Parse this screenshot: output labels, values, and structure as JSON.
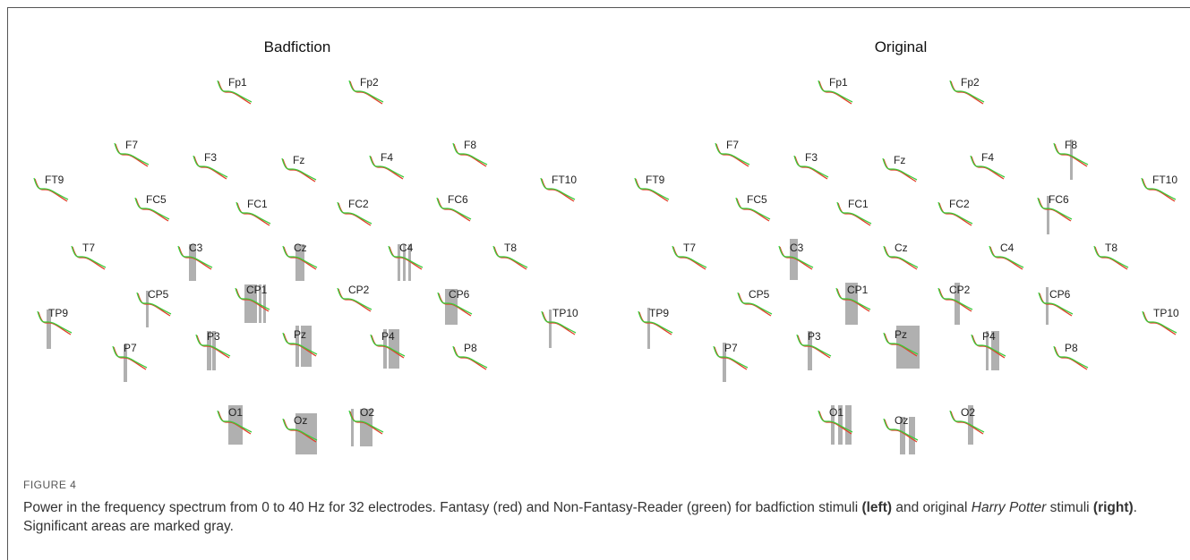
{
  "panels": [
    {
      "title": "Badfiction",
      "electrodes": [
        "Fp1",
        "Fp2",
        "F7",
        "F3",
        "Fz",
        "F4",
        "F8",
        "FT9",
        "FT10",
        "FC5",
        "FC1",
        "FC2",
        "FC6",
        "T7",
        "C3",
        "Cz",
        "C4",
        "T8",
        "TP9",
        "CP5",
        "CP1",
        "CP2",
        "CP6",
        "TP10",
        "P7",
        "P3",
        "Pz",
        "P4",
        "P8",
        "O1",
        "Oz",
        "O2"
      ]
    },
    {
      "title": "Original",
      "electrodes": [
        "Fp1",
        "Fp2",
        "F7",
        "F3",
        "Fz",
        "F4",
        "F8",
        "FT9",
        "FT10",
        "FC5",
        "FC1",
        "FC2",
        "FC6",
        "T7",
        "C3",
        "Cz",
        "C4",
        "T8",
        "TP9",
        "CP5",
        "CP1",
        "CP2",
        "CP6",
        "TP10",
        "P7",
        "P3",
        "Pz",
        "P4",
        "P8",
        "O1",
        "Oz",
        "O2"
      ]
    }
  ],
  "caption": {
    "label": "FIGURE 4",
    "parts": [
      {
        "text": "Power in the frequency spectrum from 0 to 40 Hz for 32 electrodes. Fantasy (red) and Non-Fantasy-Reader (green) for badfiction stimuli "
      },
      {
        "text": "(left)",
        "style": "bold"
      },
      {
        "text": " and original "
      },
      {
        "text": "Harry Potter",
        "style": "italic"
      },
      {
        "text": " stimuli "
      },
      {
        "text": "(right)",
        "style": "bold"
      },
      {
        "text": ". Significant areas are marked gray."
      }
    ]
  }
}
